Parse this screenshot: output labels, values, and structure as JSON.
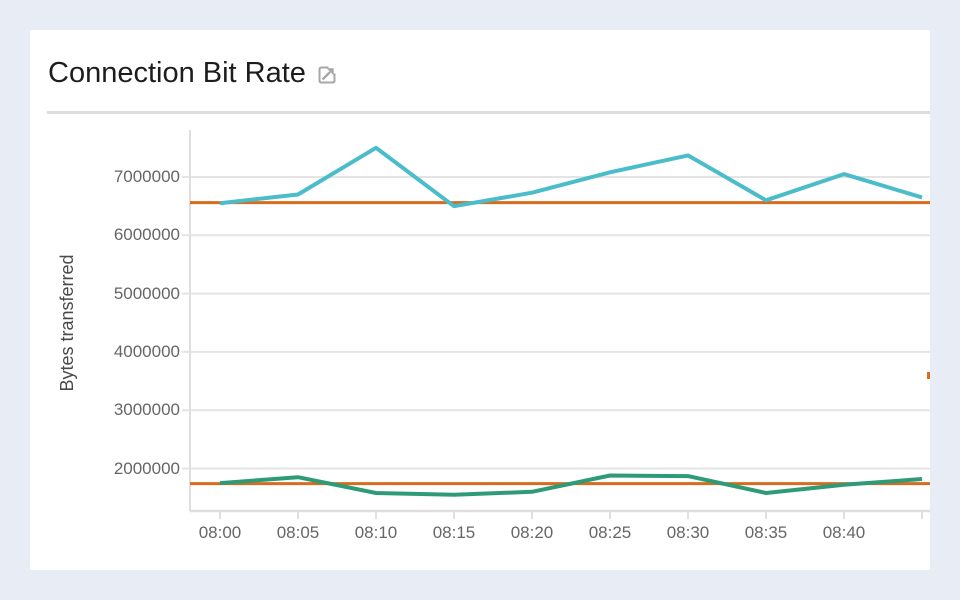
{
  "page": {
    "background_color": "#e8ecf4"
  },
  "card": {
    "background_color": "#ffffff",
    "title": "Connection Bit Rate"
  },
  "chart_data": {
    "type": "line",
    "title": "Connection Bit Rate",
    "xlabel": "",
    "ylabel": "Bytes transferred",
    "x_tick_labels": [
      "08:00",
      "08:05",
      "08:10",
      "08:15",
      "08:20",
      "08:25",
      "08:30",
      "08:35",
      "08:40"
    ],
    "y_tick_values": [
      7000000,
      6000000,
      5000000,
      4000000,
      3000000,
      2000000
    ],
    "ylim": [
      1270000,
      7810000
    ],
    "grid": "horizontal-only",
    "legend": "none",
    "colors": {
      "grid": "#e4e4e4",
      "axis": "#dfdfdf",
      "tick_label": "#666666",
      "axis_title": "#4a4a4a"
    },
    "series": [
      {
        "id": "upper-line",
        "color": "#4bbcc9",
        "values": [
          6550000,
          6700000,
          7500000,
          6500000,
          6730000,
          7080000,
          7370000,
          6600000,
          7050000,
          6650000
        ]
      },
      {
        "id": "lower-line",
        "color": "#2f9b76",
        "values": [
          1750000,
          1850000,
          1580000,
          1550000,
          1600000,
          1880000,
          1870000,
          1580000,
          1720000,
          1820000
        ]
      }
    ],
    "reference_lines": [
      {
        "id": "upper-threshold",
        "color": "#d76b1e",
        "value": 6560000
      },
      {
        "id": "lower-threshold",
        "color": "#d76b1e",
        "value": 1740000
      }
    ],
    "clipped_right_edge_marker_color": "#d76b1e"
  }
}
